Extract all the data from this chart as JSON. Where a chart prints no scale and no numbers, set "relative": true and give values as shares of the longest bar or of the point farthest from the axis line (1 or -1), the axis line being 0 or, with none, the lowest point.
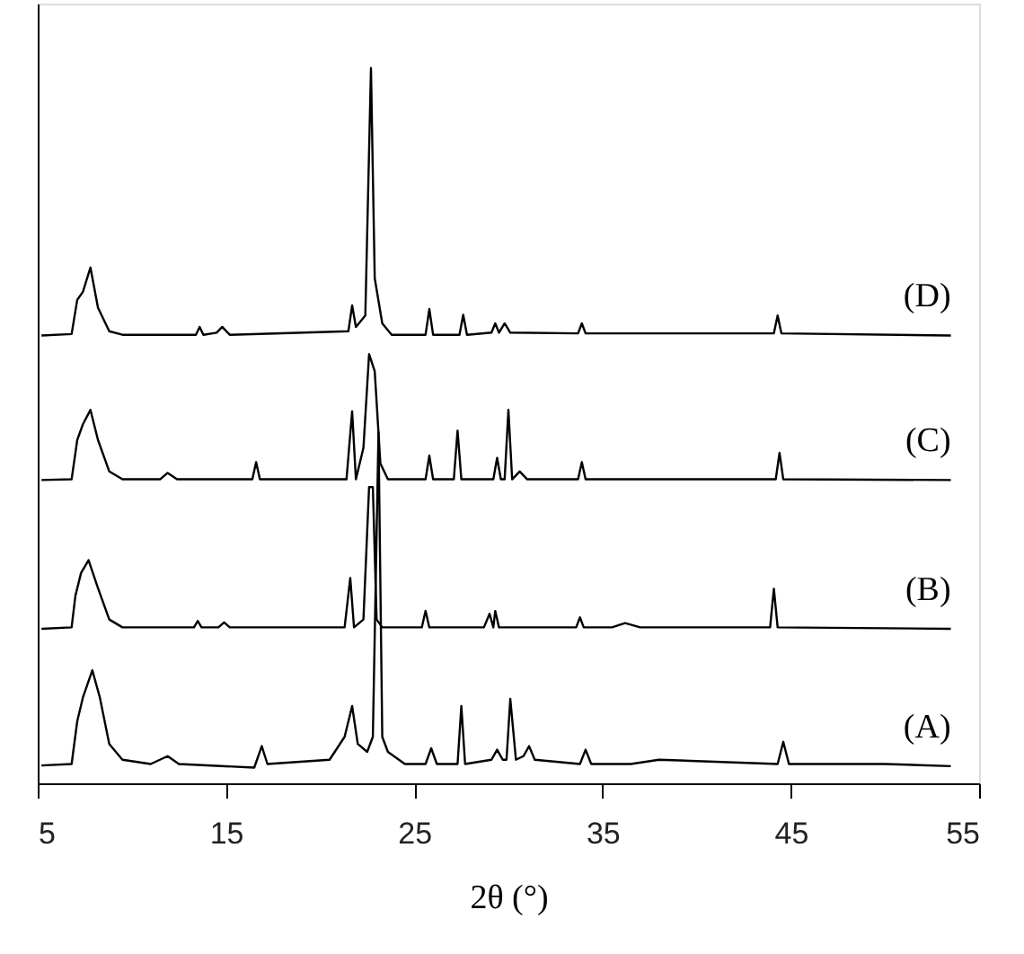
{
  "chart_data": {
    "type": "line",
    "xlabel": "2θ (°)",
    "xlim": [
      5,
      55
    ],
    "xticks": [
      5,
      15,
      25,
      35,
      45,
      55
    ],
    "relative": true,
    "tick_labels": "x",
    "grid": false,
    "marker": "none",
    "line_style": "solid",
    "series": [
      {
        "name": "(A)",
        "color": "#000000",
        "x": [
          5.2,
          6.8,
          7.1,
          7.4,
          7.9,
          8.3,
          8.8,
          9.5,
          11.0,
          11.9,
          12.5,
          16.5,
          16.9,
          17.2,
          20.5,
          21.3,
          21.7,
          22.0,
          22.5,
          22.8,
          23.1,
          23.3,
          23.6,
          24.5,
          25.6,
          25.9,
          26.2,
          27.3,
          27.5,
          27.7,
          29.1,
          29.4,
          29.7,
          29.9,
          30.1,
          30.4,
          30.8,
          31.1,
          31.4,
          33.8,
          34.1,
          34.4,
          36.5,
          38.0,
          44.3,
          44.6,
          44.9,
          50.0,
          53.5
        ],
        "values": [
          0.025,
          0.027,
          0.087,
          0.12,
          0.158,
          0.12,
          0.055,
          0.033,
          0.027,
          0.038,
          0.027,
          0.022,
          0.052,
          0.027,
          0.033,
          0.065,
          0.108,
          0.055,
          0.044,
          0.065,
          0.491,
          0.065,
          0.044,
          0.027,
          0.027,
          0.049,
          0.027,
          0.027,
          0.108,
          0.027,
          0.033,
          0.047,
          0.033,
          0.033,
          0.118,
          0.033,
          0.038,
          0.052,
          0.033,
          0.027,
          0.047,
          0.027,
          0.027,
          0.033,
          0.027,
          0.058,
          0.027,
          0.027,
          0.024
        ]
      },
      {
        "name": "(B)",
        "color": "#000000",
        "x": [
          5.2,
          6.8,
          7.0,
          7.3,
          7.7,
          8.2,
          8.8,
          9.5,
          13.3,
          13.5,
          13.7,
          14.6,
          14.9,
          15.2,
          21.3,
          21.6,
          21.8,
          22.3,
          22.6,
          22.8,
          23.0,
          23.3,
          25.4,
          25.6,
          25.8,
          28.7,
          29.0,
          29.2,
          29.3,
          29.5,
          33.6,
          33.8,
          34.0,
          35.5,
          36.2,
          37.0,
          43.9,
          44.1,
          44.3,
          53.5
        ],
        "values": [
          0.216,
          0.218,
          0.262,
          0.294,
          0.312,
          0.273,
          0.229,
          0.218,
          0.218,
          0.227,
          0.218,
          0.218,
          0.225,
          0.218,
          0.218,
          0.287,
          0.218,
          0.229,
          0.414,
          0.414,
          0.229,
          0.218,
          0.218,
          0.241,
          0.218,
          0.218,
          0.237,
          0.218,
          0.241,
          0.218,
          0.218,
          0.232,
          0.218,
          0.218,
          0.224,
          0.218,
          0.218,
          0.272,
          0.218,
          0.216
        ]
      },
      {
        "name": "(C)",
        "color": "#000000",
        "x": [
          5.2,
          6.8,
          7.1,
          7.4,
          7.8,
          8.2,
          8.8,
          9.5,
          11.5,
          11.9,
          12.4,
          16.4,
          16.6,
          16.8,
          21.4,
          21.7,
          21.9,
          22.3,
          22.6,
          22.9,
          23.2,
          23.6,
          25.6,
          25.8,
          26.0,
          27.1,
          27.3,
          27.5,
          29.2,
          29.4,
          29.6,
          29.8,
          30.0,
          30.2,
          30.6,
          31.0,
          33.7,
          33.9,
          34.1,
          36.0,
          44.2,
          44.4,
          44.6,
          53.5
        ],
        "values": [
          0.424,
          0.425,
          0.48,
          0.502,
          0.522,
          0.48,
          0.436,
          0.425,
          0.425,
          0.434,
          0.425,
          0.425,
          0.449,
          0.425,
          0.425,
          0.52,
          0.425,
          0.469,
          0.6,
          0.576,
          0.447,
          0.425,
          0.425,
          0.458,
          0.425,
          0.425,
          0.493,
          0.425,
          0.425,
          0.455,
          0.425,
          0.425,
          0.522,
          0.425,
          0.436,
          0.425,
          0.425,
          0.449,
          0.425,
          0.425,
          0.425,
          0.462,
          0.425,
          0.424
        ]
      },
      {
        "name": "(D)",
        "color": "#000000",
        "x": [
          5.2,
          6.8,
          7.1,
          7.4,
          7.8,
          8.2,
          8.8,
          9.5,
          13.4,
          13.6,
          13.8,
          14.5,
          14.8,
          15.2,
          21.5,
          21.7,
          21.9,
          22.4,
          22.7,
          22.9,
          23.3,
          23.8,
          25.6,
          25.8,
          26.0,
          27.4,
          27.6,
          27.8,
          29.1,
          29.3,
          29.5,
          29.8,
          30.1,
          33.7,
          33.9,
          34.1,
          44.1,
          44.3,
          44.5,
          53.5
        ],
        "values": [
          0.626,
          0.628,
          0.676,
          0.687,
          0.721,
          0.665,
          0.632,
          0.627,
          0.627,
          0.638,
          0.627,
          0.63,
          0.638,
          0.627,
          0.632,
          0.668,
          0.638,
          0.654,
          1,
          0.706,
          0.643,
          0.627,
          0.627,
          0.663,
          0.627,
          0.627,
          0.655,
          0.627,
          0.63,
          0.643,
          0.63,
          0.643,
          0.63,
          0.629,
          0.643,
          0.629,
          0.629,
          0.654,
          0.629,
          0.626
        ]
      }
    ]
  }
}
